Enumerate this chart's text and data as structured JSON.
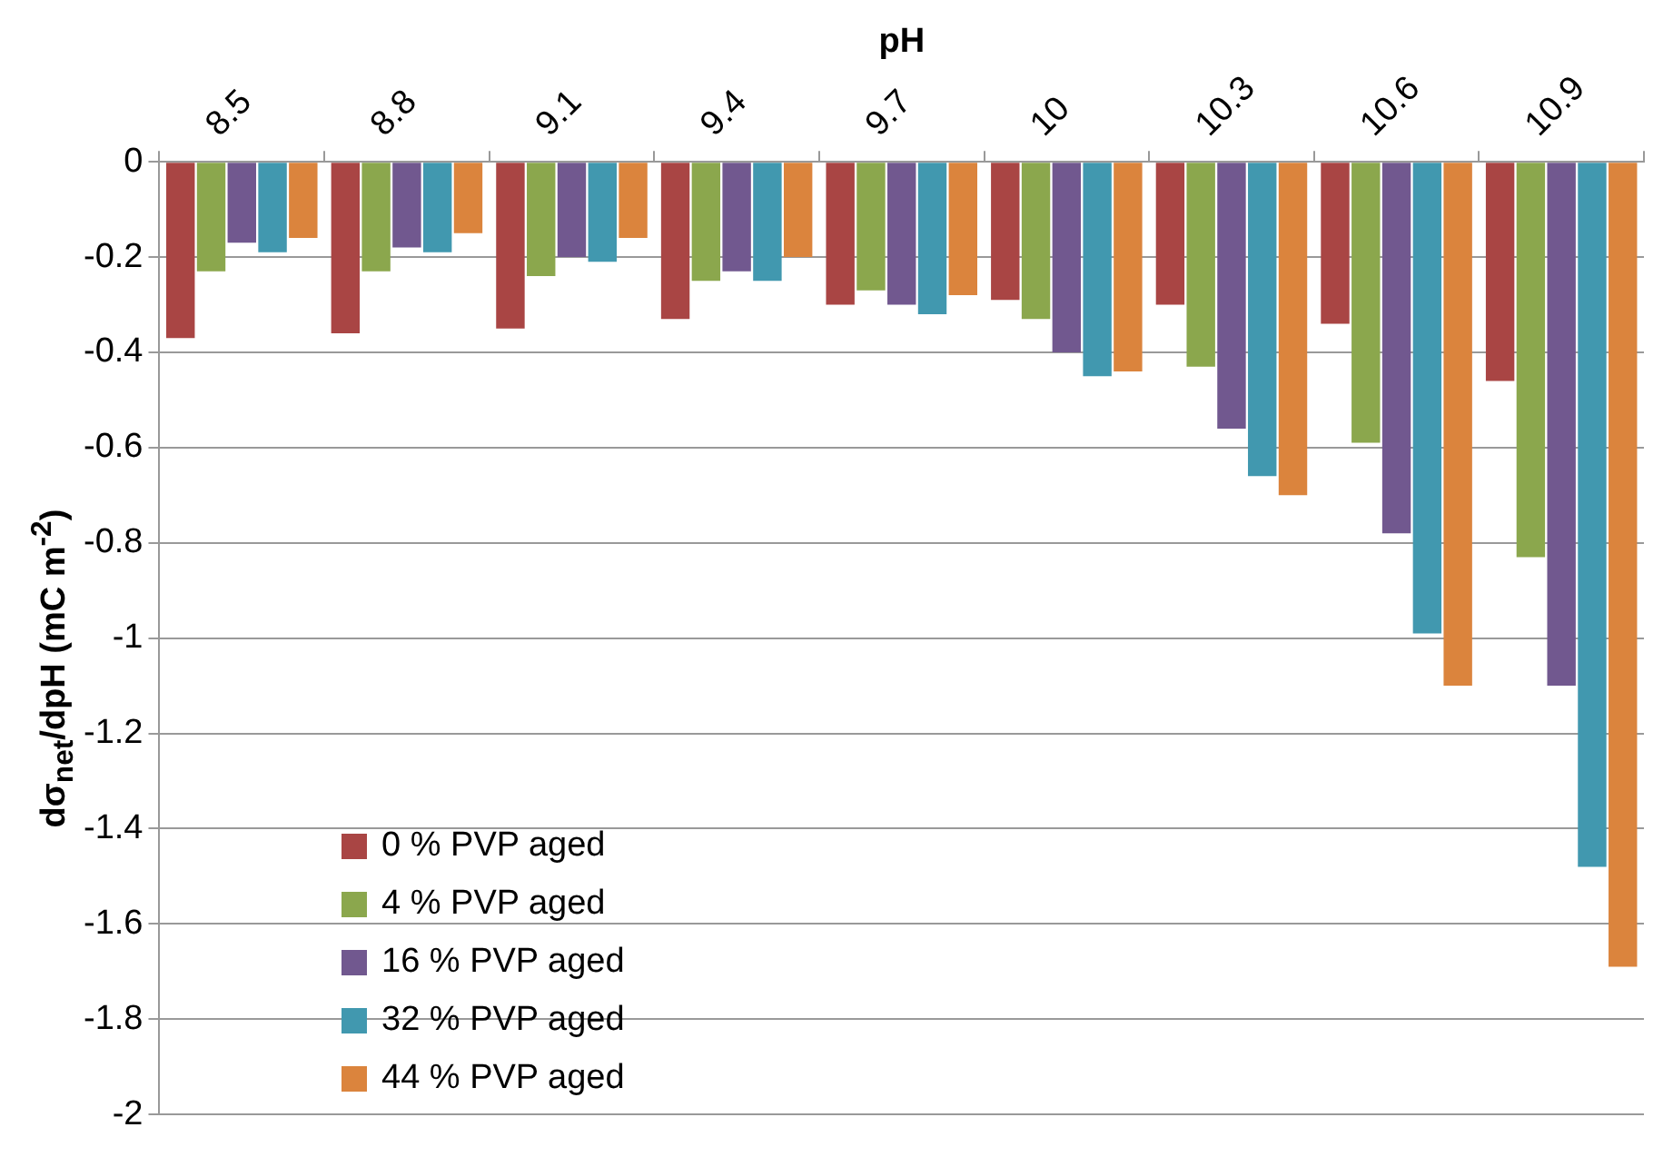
{
  "chart_data": {
    "type": "bar",
    "xlabel": "pH",
    "ylabel": "dσ$_{net}$/dpH (mC m$^{-2}$)",
    "categories": [
      "8.5",
      "8.8",
      "9.1",
      "9.4",
      "9.7",
      "10",
      "10.3",
      "10.6",
      "10.9"
    ],
    "series": [
      {
        "name": "0 % PVP aged",
        "color": "#a94544",
        "values": [
          -0.37,
          -0.36,
          -0.35,
          -0.33,
          -0.3,
          -0.29,
          -0.3,
          -0.34,
          -0.46
        ]
      },
      {
        "name": "4 % PVP aged",
        "color": "#8ba74d",
        "values": [
          -0.23,
          -0.23,
          -0.24,
          -0.25,
          -0.27,
          -0.33,
          -0.43,
          -0.59,
          -0.83
        ]
      },
      {
        "name": "16 % PVP aged",
        "color": "#71588f",
        "values": [
          -0.17,
          -0.18,
          -0.2,
          -0.23,
          -0.3,
          -0.4,
          -0.56,
          -0.78,
          -1.1
        ]
      },
      {
        "name": "32 % PVP aged",
        "color": "#4198af",
        "values": [
          -0.19,
          -0.19,
          -0.21,
          -0.25,
          -0.32,
          -0.45,
          -0.66,
          -0.99,
          -1.48
        ]
      },
      {
        "name": "44 % PVP aged",
        "color": "#db843d",
        "values": [
          -0.16,
          -0.15,
          -0.16,
          -0.2,
          -0.28,
          -0.44,
          -0.7,
          -1.1,
          -1.69
        ]
      }
    ],
    "ylim": [
      -2,
      0
    ],
    "yticks": [
      -2,
      -1.8,
      -1.6,
      -1.4,
      -1.2,
      -1,
      -0.8,
      -0.6,
      -0.4,
      -0.2,
      0
    ],
    "grid": "y",
    "legend": "bottom left"
  }
}
